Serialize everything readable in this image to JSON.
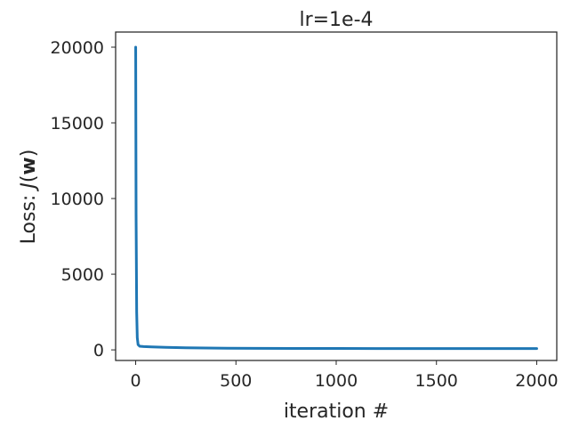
{
  "chart_data": {
    "type": "line",
    "title": "lr=1e-4",
    "xlabel": "iteration #",
    "ylabel_prefix": "Loss: ",
    "ylabel_func": "J",
    "ylabel_arg": "w",
    "xlim": [
      -100,
      2100
    ],
    "ylim": [
      -700,
      21000
    ],
    "xticks": [
      0,
      500,
      1000,
      1500,
      2000
    ],
    "yticks": [
      0,
      5000,
      10000,
      15000,
      20000
    ],
    "grid": false,
    "line_color": "#1f77b4",
    "series": [
      {
        "x": [
          0,
          2,
          5,
          8,
          12,
          20,
          40,
          80,
          150,
          250,
          400,
          600,
          800,
          1000,
          1200,
          1400,
          1600,
          1800,
          2000
        ],
        "y": [
          20000,
          9000,
          2500,
          800,
          350,
          240,
          220,
          200,
          170,
          140,
          115,
          100,
          95,
          92,
          90,
          88,
          87,
          86,
          85
        ]
      }
    ]
  }
}
